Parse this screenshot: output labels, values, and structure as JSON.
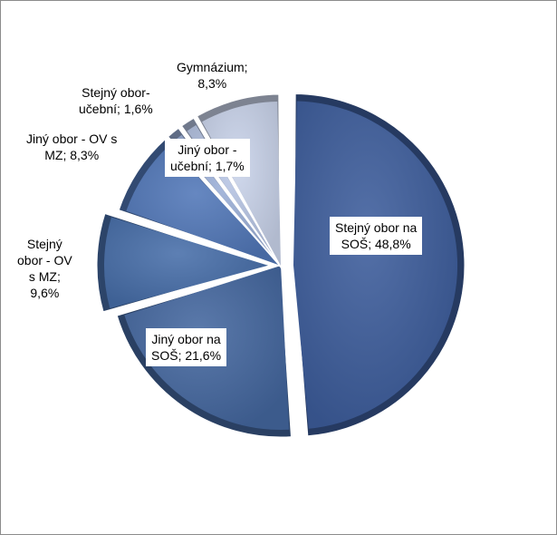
{
  "colors": {
    "frame_border": "#8c8c8c",
    "label_box": "#ffffff"
  },
  "chart_data": {
    "type": "pie",
    "style": "3d-bevel-exploded",
    "start_angle_deg": 0,
    "direction": "clockwise",
    "slices": [
      {
        "name": "Stejný obor na SOŠ",
        "value": 48.8,
        "label": "Stejný obor na\nSOŠ; 48,8%",
        "color": "#3d5d9c",
        "exploded": true
      },
      {
        "name": "Jiný obor na SOŠ",
        "value": 21.6,
        "label": "Jiný obor na\nSOŠ; 21,6%",
        "color": "#44679f",
        "exploded": false
      },
      {
        "name": "Stejný obor - OV s MZ",
        "value": 9.6,
        "label": "Stejný\nobor - OV\ns MZ;\n9,6%",
        "color": "#476ea9",
        "exploded": true
      },
      {
        "name": "Jiný obor - OV s MZ",
        "value": 8.3,
        "label": "Jiný obor - OV s\nMZ; 8,3%",
        "color": "#5177b8",
        "exploded": false
      },
      {
        "name": "Stejný obor- učební",
        "value": 1.6,
        "label": "Stejný obor-\nučební; 1,6%",
        "color": "#9aaed6",
        "exploded": false
      },
      {
        "name": "Jiný obor - učební",
        "value": 1.7,
        "label": "Jiný obor -\nučební; 1,7%",
        "color": "#b5c3e2",
        "exploded": false
      },
      {
        "name": "Gymnázium",
        "value": 8.3,
        "label": "Gymnázium;\n8,3%",
        "color": "#c9d3ea",
        "exploded": false
      }
    ]
  }
}
